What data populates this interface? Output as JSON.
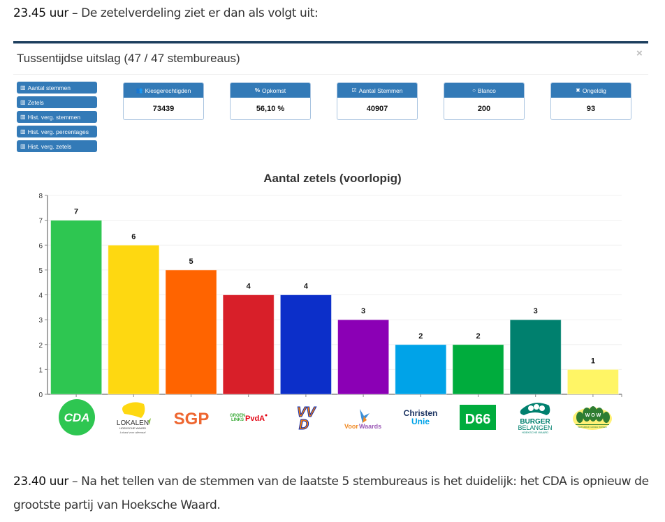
{
  "article": {
    "intro_time": "23.45 uur",
    "intro_text": " – De zetelverdeling ziet er dan als volgt uit:",
    "outro_time": "23.40 uur",
    "outro_text": " – Na het tellen van de stemmen van de laatste 5 stembureaus is het duidelijk: het CDA is opnieuw de grootste partij van Hoeksche Waard."
  },
  "modal": {
    "title": "Tussentijdse uitslag (47 / 47 stembureaus)",
    "close_label": "×",
    "side_buttons": [
      {
        "icon": "bar-chart-icon",
        "label": "Aantal stemmen"
      },
      {
        "icon": "bar-chart-icon",
        "label": "Zetels"
      },
      {
        "icon": "bar-chart-icon",
        "label": "Hist. verg. stemmen"
      },
      {
        "icon": "bar-chart-icon",
        "label": "Hist. verg. percentages"
      },
      {
        "icon": "bar-chart-icon",
        "label": "Hist. verg. zetels"
      }
    ],
    "stats": [
      {
        "icon": "users-icon",
        "glyph": "👥",
        "label": "Kiesgerechtigden",
        "value": "73439"
      },
      {
        "icon": "percent-icon",
        "glyph": "%",
        "label": "Opkomst",
        "value": "56,10 %"
      },
      {
        "icon": "checkbox-icon",
        "glyph": "☑",
        "label": "Aantal Stemmen",
        "value": "40907"
      },
      {
        "icon": "circle-icon",
        "glyph": "○",
        "label": "Blanco",
        "value": "200"
      },
      {
        "icon": "x-icon",
        "glyph": "✖",
        "label": "Ongeldig",
        "value": "93"
      }
    ]
  },
  "chart_data": {
    "type": "bar",
    "title": "Aantal zetels (voorlopig)",
    "xlabel": "",
    "ylabel": "",
    "ylim": [
      0,
      8
    ],
    "yticks": [
      0,
      1,
      2,
      3,
      4,
      5,
      6,
      7,
      8
    ],
    "grid": true,
    "legend": "none",
    "categories": [
      "CDA",
      "Lokalen Hoeksche Waard",
      "SGP",
      "GroenLinks PvdA",
      "VVD",
      "VoorWaards",
      "ChristenUnie",
      "D66",
      "Burger Belangen Hoeksche Waard",
      "WOW"
    ],
    "values": [
      7,
      6,
      5,
      4,
      4,
      3,
      2,
      2,
      3,
      1
    ],
    "colors": [
      "#2ec651",
      "#fed811",
      "#ff6400",
      "#d81f29",
      "#0c2fc9",
      "#8b00b5",
      "#00a3e8",
      "#00ac3d",
      "#00806e",
      "#fff565"
    ],
    "data_labels": [
      "7",
      "6",
      "5",
      "4",
      "4",
      "3",
      "2",
      "2",
      "3",
      "1"
    ]
  }
}
